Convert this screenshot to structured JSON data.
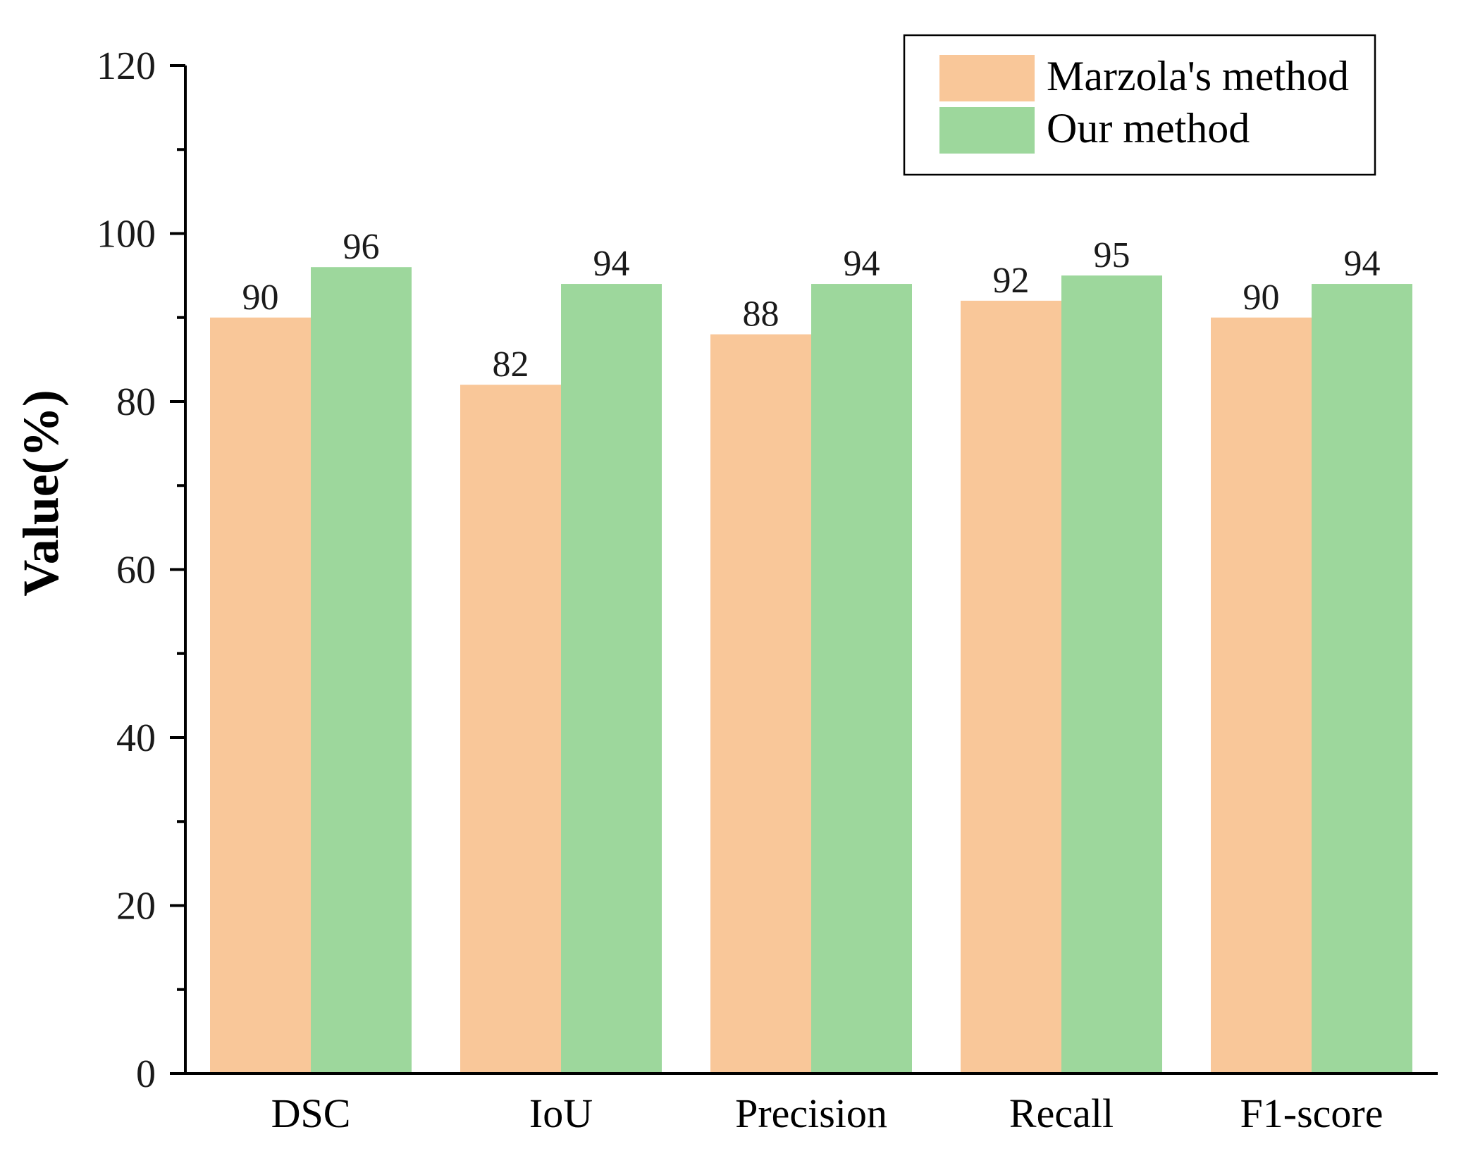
{
  "chart_data": {
    "type": "bar",
    "title": "",
    "xlabel": "",
    "ylabel": "Value(%)",
    "categories": [
      "DSC",
      "IoU",
      "Precision",
      "Recall",
      "F1-score"
    ],
    "series": [
      {
        "name": "Marzola's method",
        "color": "#F9C799",
        "values": [
          90,
          82,
          88,
          92,
          90
        ]
      },
      {
        "name": "Our method",
        "color": "#9DD79C",
        "values": [
          96,
          94,
          94,
          95,
          94
        ]
      }
    ],
    "ylim": [
      0,
      120
    ],
    "yticks": [
      0,
      20,
      40,
      60,
      80,
      100,
      120
    ],
    "yminor_step": 10,
    "grid": false,
    "legend_position": "top-right",
    "data_labels": true
  }
}
